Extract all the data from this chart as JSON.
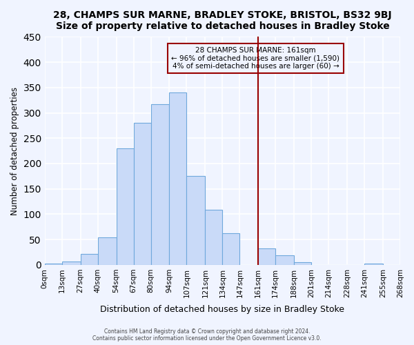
{
  "title": "28, CHAMPS SUR MARNE, BRADLEY STOKE, BRISTOL, BS32 9BJ",
  "subtitle": "Size of property relative to detached houses in Bradley Stoke",
  "xlabel": "Distribution of detached houses by size in Bradley Stoke",
  "ylabel": "Number of detached properties",
  "bin_labels": [
    "0sqm",
    "13sqm",
    "27sqm",
    "40sqm",
    "54sqm",
    "67sqm",
    "80sqm",
    "94sqm",
    "107sqm",
    "121sqm",
    "134sqm",
    "147sqm",
    "161sqm",
    "174sqm",
    "188sqm",
    "201sqm",
    "214sqm",
    "228sqm",
    "241sqm",
    "255sqm",
    "268sqm"
  ],
  "bin_edges": [
    0,
    13,
    27,
    40,
    54,
    67,
    80,
    94,
    107,
    121,
    134,
    147,
    161,
    174,
    188,
    201,
    214,
    228,
    241,
    255,
    268
  ],
  "bar_heights": [
    3,
    7,
    22,
    54,
    230,
    280,
    317,
    340,
    176,
    109,
    62,
    0,
    32,
    19,
    5,
    0,
    0,
    0,
    3,
    0
  ],
  "bar_color": "#c9daf8",
  "bar_edge_color": "#6fa8dc",
  "vline_x": 161,
  "vline_color": "#990000",
  "annotation_title": "28 CHAMPS SUR MARNE: 161sqm",
  "annotation_line1": "← 96% of detached houses are smaller (1,590)",
  "annotation_line2": "4% of semi-detached houses are larger (60) →",
  "annotation_box_edge_color": "#990000",
  "ylim": [
    0,
    450
  ],
  "yticks": [
    0,
    50,
    100,
    150,
    200,
    250,
    300,
    350,
    400,
    450
  ],
  "footer_line1": "Contains HM Land Registry data © Crown copyright and database right 2024.",
  "footer_line2": "Contains public sector information licensed under the Open Government Licence v3.0.",
  "bg_color": "#f0f4ff",
  "grid_color": "#ffffff"
}
